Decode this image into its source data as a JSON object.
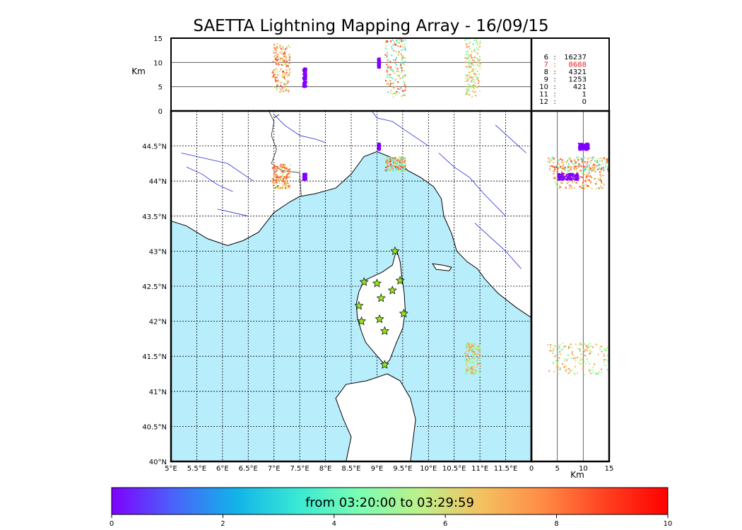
{
  "title": "SAETTA Lightning Mapping Array - 16/09/15",
  "altitude_axis_label": "Km",
  "altitude_ticks": [
    "15",
    "10",
    "5",
    "0"
  ],
  "side_axis_label": "Km",
  "side_ticks": [
    "0",
    "5",
    "10",
    "15"
  ],
  "lon_ticks": [
    "5°E",
    "5.5°E",
    "6°E",
    "6.5°E",
    "7°E",
    "7.5°E",
    "8°E",
    "8.5°E",
    "9°E",
    "9.5°E",
    "10°E",
    "10.5°E",
    "11°E",
    "11.5°E"
  ],
  "lat_ticks": [
    "40°N",
    "40.5°N",
    "41°N",
    "41.5°N",
    "42°N",
    "42.5°N",
    "43°N",
    "43.5°N",
    "44°N",
    "44.5°N"
  ],
  "station_counts": [
    {
      "stations": "6",
      "sep": ":",
      "count": "16237",
      "color": "#000000"
    },
    {
      "stations": "7",
      "sep": ":",
      "count": "8688",
      "color": "#e8211d"
    },
    {
      "stations": "8",
      "sep": ":",
      "count": "4321",
      "color": "#000000"
    },
    {
      "stations": "9",
      "sep": ":",
      "count": "1253",
      "color": "#000000"
    },
    {
      "stations": "10",
      "sep": ":",
      "count": "421",
      "color": "#000000"
    },
    {
      "stations": "11",
      "sep": ":",
      "count": "1",
      "color": "#000000"
    },
    {
      "stations": "12",
      "sep": ":",
      "count": "0",
      "color": "#000000"
    }
  ],
  "colorbar": {
    "label": "from 03:20:00 to 03:29:59",
    "ticks": [
      "0",
      "2",
      "4",
      "6",
      "8",
      "10"
    ]
  },
  "colors": {
    "sea": "#b8eefc",
    "rivers": "#2a2adc",
    "stations": "#96e61e",
    "colormap": [
      "#7f00ff",
      "#4a63fb",
      "#12b2ea",
      "#38e8d4",
      "#7afeb2",
      "#bdf08a",
      "#f4c060",
      "#ff8a45",
      "#ff4020",
      "#ff0000"
    ]
  },
  "chart_data": {
    "type": "scatter",
    "title": "SAETTA Lightning Mapping Array - 16/09/15",
    "xlim": [
      5,
      12
    ],
    "ylim": [
      40,
      45
    ],
    "altitude_range_km": [
      0,
      15
    ],
    "color_scale": {
      "min": 0,
      "max": 10,
      "units": "minutes after 03:20:00"
    },
    "clusters": [
      {
        "lon_range": [
          6.95,
          7.3
        ],
        "lat_range": [
          43.9,
          44.25
        ],
        "alt_range_km": [
          4,
          14
        ],
        "time_range": [
          5,
          9
        ]
      },
      {
        "lon_range": [
          7.55,
          7.62
        ],
        "lat_range": [
          44.02,
          44.12
        ],
        "alt_range_km": [
          5,
          9
        ],
        "time_range": [
          0,
          1
        ]
      },
      {
        "lon_range": [
          9.0,
          9.05
        ],
        "lat_range": [
          44.45,
          44.55
        ],
        "alt_range_km": [
          9,
          11
        ],
        "time_range": [
          0,
          0.5
        ]
      },
      {
        "lon_range": [
          9.15,
          9.55
        ],
        "lat_range": [
          44.15,
          44.35
        ],
        "alt_range_km": [
          3,
          15
        ],
        "time_range": [
          3,
          9
        ]
      },
      {
        "lon_range": [
          10.7,
          11.0
        ],
        "lat_range": [
          41.25,
          41.7
        ],
        "alt_range_km": [
          3,
          15
        ],
        "time_range": [
          4,
          8
        ]
      }
    ],
    "stations": [
      {
        "lon": 9.35,
        "lat": 43.0
      },
      {
        "lon": 8.75,
        "lat": 42.56
      },
      {
        "lon": 9.0,
        "lat": 42.54
      },
      {
        "lon": 9.45,
        "lat": 42.58
      },
      {
        "lon": 9.3,
        "lat": 42.44
      },
      {
        "lon": 9.08,
        "lat": 42.33
      },
      {
        "lon": 8.65,
        "lat": 42.22
      },
      {
        "lon": 9.52,
        "lat": 42.11
      },
      {
        "lon": 8.7,
        "lat": 42.0
      },
      {
        "lon": 9.05,
        "lat": 42.03
      },
      {
        "lon": 9.15,
        "lat": 41.86
      },
      {
        "lon": 9.15,
        "lat": 41.38
      }
    ]
  }
}
